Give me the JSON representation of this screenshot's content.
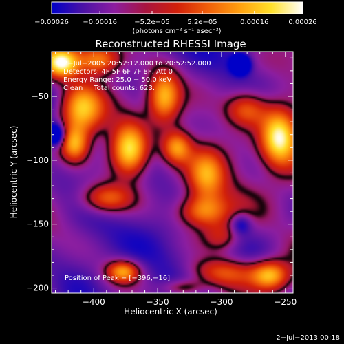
{
  "chart_data": {
    "type": "heatmap",
    "title": "Reconstructed RHESSI Image",
    "xlabel": "Heliocentric X (arcsec)",
    "ylabel": "Heliocentric Y (arcsec)",
    "xlim": [
      -433,
      -244
    ],
    "ylim": [
      -204,
      -15
    ],
    "x_ticks": [
      -400,
      -350,
      -300,
      -250
    ],
    "y_ticks": [
      -50,
      -100,
      -150,
      -200
    ],
    "x_tick_labels": [
      "−400",
      "−350",
      "−300",
      "−250"
    ],
    "y_tick_labels": [
      "−50",
      "−100",
      "−150",
      "−200"
    ],
    "colorbar": {
      "ticks": [
        -0.00026,
        -0.00016,
        -5.2e-05,
        5.2e-05,
        0.00016,
        0.00026
      ],
      "tick_labels": [
        "−0.00026",
        "−0.00016",
        "−5.2e−05",
        "5.2e−05",
        "0.00016",
        "0.00026"
      ],
      "range": [
        -0.00026,
        0.00026
      ],
      "unit_label": "(photons cm⁻² s⁻¹ asec⁻²)",
      "colors": [
        "#0000c8",
        "#4b12a6",
        "#8c1ea0",
        "#a8143f",
        "#d2200a",
        "#f0600a",
        "#ffa00f",
        "#ffe02a",
        "#ffffff"
      ]
    },
    "annotations": {
      "time": "2−Jul−2005 20:52:12.000 to 20:52:52.000",
      "detectors": "Detectors: 4F 5F 6F 7F 8F, Att 0",
      "energy": "Energy Range: 25.0 − 50.0 keV",
      "clean": "Clean     Total counts: 623.",
      "peak": "Position of Peak = [−396,−16]"
    },
    "peak_position": [
      -396,
      -16
    ],
    "sources": [
      {
        "x": -425,
        "y": -24,
        "a": 0.95,
        "sx": 9,
        "sy": 8
      },
      {
        "x": -396,
        "y": -22,
        "a": 0.7,
        "sx": 12,
        "sy": 8
      },
      {
        "x": -410,
        "y": -60,
        "a": 0.85,
        "sx": 12,
        "sy": 14
      },
      {
        "x": -415,
        "y": -88,
        "a": 0.8,
        "sx": 8,
        "sy": 10
      },
      {
        "x": -372,
        "y": -92,
        "a": 1.0,
        "sx": 10,
        "sy": 14
      },
      {
        "x": -390,
        "y": -130,
        "a": 0.6,
        "sx": 14,
        "sy": 8
      },
      {
        "x": -345,
        "y": -50,
        "a": 0.85,
        "sx": 9,
        "sy": 14
      },
      {
        "x": -335,
        "y": -90,
        "a": 0.7,
        "sx": 8,
        "sy": 9
      },
      {
        "x": -312,
        "y": -112,
        "a": 0.6,
        "sx": 10,
        "sy": 14
      },
      {
        "x": -315,
        "y": -140,
        "a": 0.7,
        "sx": 14,
        "sy": 9
      },
      {
        "x": -280,
        "y": -60,
        "a": 0.65,
        "sx": 12,
        "sy": 10
      },
      {
        "x": -255,
        "y": -82,
        "a": 1.0,
        "sx": 10,
        "sy": 16
      },
      {
        "x": -300,
        "y": -188,
        "a": 0.6,
        "sx": 20,
        "sy": 8
      },
      {
        "x": -262,
        "y": -190,
        "a": 0.75,
        "sx": 10,
        "sy": 8
      },
      {
        "x": -377,
        "y": -187,
        "a": 0.75,
        "sx": 9,
        "sy": 6
      },
      {
        "x": -330,
        "y": -200,
        "a": 0.5,
        "sx": 12,
        "sy": 5
      },
      {
        "x": -300,
        "y": -160,
        "a": 0.35,
        "sx": 10,
        "sy": 8
      },
      {
        "x": -285,
        "y": -25,
        "a": -0.9,
        "sx": 5,
        "sy": 5
      },
      {
        "x": -430,
        "y": -80,
        "a": -0.8,
        "sx": 5,
        "sy": 6
      },
      {
        "x": -285,
        "y": -150,
        "a": -0.4,
        "sx": 6,
        "sy": 6
      }
    ]
  },
  "footer": {
    "timestamp": "2−Jul−2013 00:18"
  }
}
